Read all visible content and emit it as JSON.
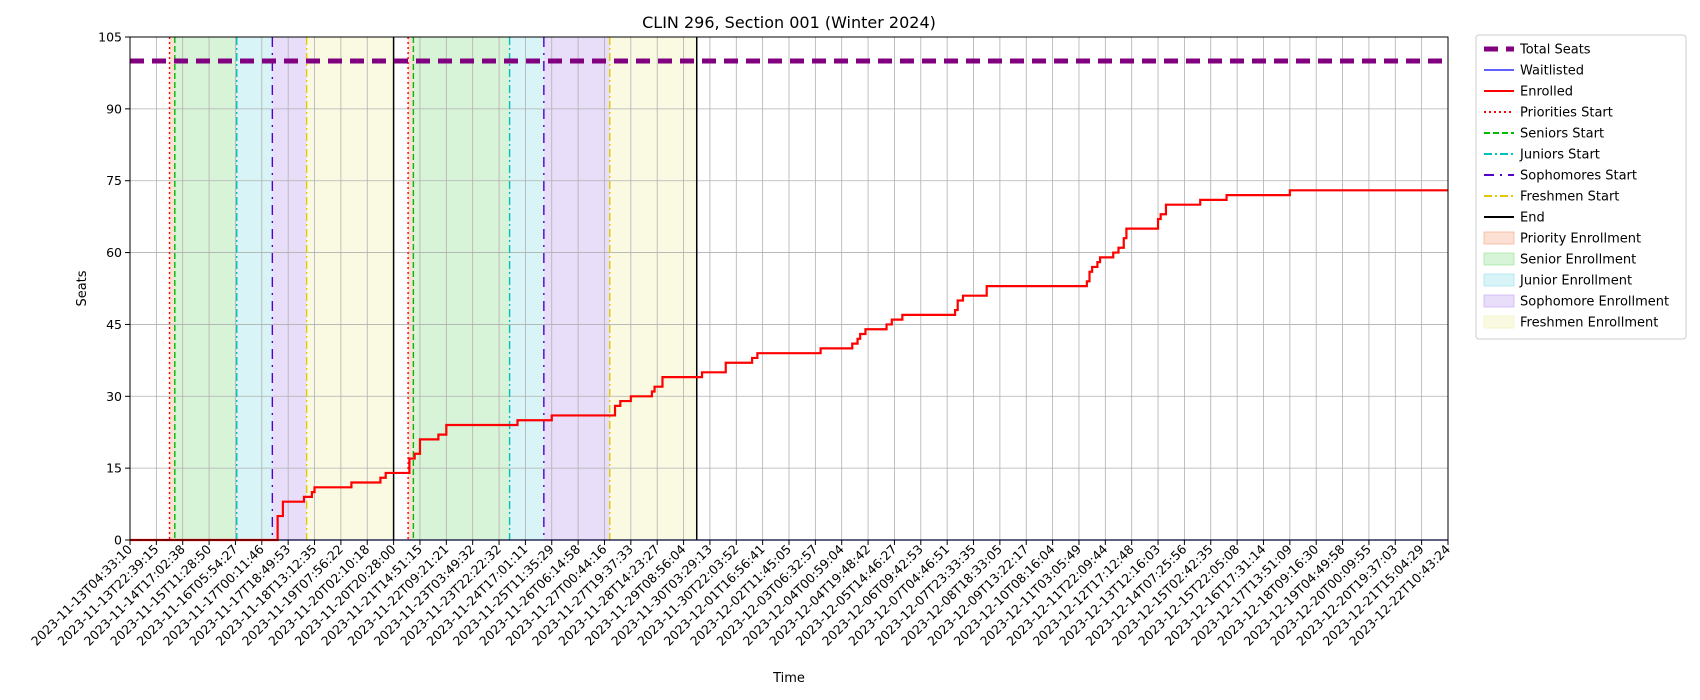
{
  "chart_data": {
    "type": "line",
    "title": "CLIN 296, Section 001 (Winter 2024)",
    "xlabel": "Time",
    "ylabel": "Seats",
    "ylim": [
      0,
      105
    ],
    "yticks": [
      0,
      15,
      30,
      45,
      60,
      75,
      90,
      105
    ],
    "grid": true,
    "legend_position": "outside-top-right",
    "x_tick_labels": [
      "2023-11-13T04:33:10",
      "2023-11-13T22:39:15",
      "2023-11-14T17:02:38",
      "2023-11-15T11:28:50",
      "2023-11-16T05:54:27",
      "2023-11-17T00:11:46",
      "2023-11-17T18:49:53",
      "2023-11-18T13:12:35",
      "2023-11-19T07:56:22",
      "2023-11-20T02:10:18",
      "2023-11-20T20:28:00",
      "2023-11-21T14:51:15",
      "2023-11-22T09:21:21",
      "2023-11-23T03:49:32",
      "2023-11-23T22:22:32",
      "2023-11-24T17:01:11",
      "2023-11-25T11:35:29",
      "2023-11-26T06:14:58",
      "2023-11-27T00:44:16",
      "2023-11-27T19:37:33",
      "2023-11-28T14:23:27",
      "2023-11-29T08:56:04",
      "2023-11-30T03:29:13",
      "2023-11-30T22:03:52",
      "2023-12-01T16:56:41",
      "2023-12-02T11:45:05",
      "2023-12-03T06:32:57",
      "2023-12-04T00:59:04",
      "2023-12-04T19:48:42",
      "2023-12-05T14:46:27",
      "2023-12-06T09:42:53",
      "2023-12-07T04:46:51",
      "2023-12-07T23:33:35",
      "2023-12-08T18:33:05",
      "2023-12-09T13:22:17",
      "2023-12-10T08:16:04",
      "2023-12-11T03:05:49",
      "2023-12-11T22:09:44",
      "2023-12-12T17:12:48",
      "2023-12-13T12:16:03",
      "2023-12-14T07:25:56",
      "2023-12-15T02:42:35",
      "2023-12-15T22:05:08",
      "2023-12-16T17:31:14",
      "2023-12-17T13:51:09",
      "2023-12-18T09:16:30",
      "2023-12-19T04:49:58",
      "2023-12-20T00:09:55",
      "2023-12-20T19:37:03",
      "2023-12-21T15:04:29",
      "2023-12-22T10:43:24"
    ],
    "x_range": [
      0,
      50
    ],
    "series": [
      {
        "name": "Total Seats",
        "color": "#800080",
        "style": "dashed-thick",
        "points": [
          [
            0,
            100
          ],
          [
            50,
            100
          ]
        ]
      },
      {
        "name": "Waitlisted",
        "color": "#0000ff",
        "style": "solid-thin",
        "points": [
          [
            0,
            0
          ],
          [
            50,
            0
          ]
        ]
      },
      {
        "name": "Enrolled",
        "color": "#ff0000",
        "style": "solid",
        "points": [
          [
            0,
            0
          ],
          [
            5.6,
            0
          ],
          [
            5.6,
            5
          ],
          [
            5.8,
            5
          ],
          [
            5.8,
            8
          ],
          [
            6.6,
            8
          ],
          [
            6.6,
            9
          ],
          [
            6.9,
            9
          ],
          [
            6.9,
            10
          ],
          [
            7.0,
            10
          ],
          [
            7.0,
            11
          ],
          [
            8.4,
            11
          ],
          [
            8.4,
            12
          ],
          [
            9.5,
            12
          ],
          [
            9.5,
            13
          ],
          [
            9.7,
            13
          ],
          [
            9.7,
            14
          ],
          [
            10.6,
            14
          ],
          [
            10.6,
            17
          ],
          [
            10.8,
            17
          ],
          [
            10.8,
            18
          ],
          [
            11.0,
            18
          ],
          [
            11.0,
            21
          ],
          [
            11.7,
            21
          ],
          [
            11.7,
            22
          ],
          [
            12.0,
            22
          ],
          [
            12.0,
            24
          ],
          [
            14.7,
            24
          ],
          [
            14.7,
            25
          ],
          [
            16.0,
            25
          ],
          [
            16.0,
            26
          ],
          [
            18.4,
            26
          ],
          [
            18.4,
            28
          ],
          [
            18.6,
            28
          ],
          [
            18.6,
            29
          ],
          [
            19.0,
            29
          ],
          [
            19.0,
            30
          ],
          [
            19.8,
            30
          ],
          [
            19.8,
            31
          ],
          [
            19.9,
            31
          ],
          [
            19.9,
            32
          ],
          [
            20.2,
            32
          ],
          [
            20.2,
            34
          ],
          [
            21.7,
            34
          ],
          [
            21.7,
            35
          ],
          [
            22.6,
            35
          ],
          [
            22.6,
            37
          ],
          [
            23.6,
            37
          ],
          [
            23.6,
            38
          ],
          [
            23.8,
            38
          ],
          [
            23.8,
            39
          ],
          [
            26.2,
            39
          ],
          [
            26.2,
            40
          ],
          [
            27.4,
            40
          ],
          [
            27.4,
            41
          ],
          [
            27.6,
            41
          ],
          [
            27.6,
            42
          ],
          [
            27.7,
            42
          ],
          [
            27.7,
            43
          ],
          [
            27.9,
            43
          ],
          [
            27.9,
            44
          ],
          [
            28.7,
            44
          ],
          [
            28.7,
            45
          ],
          [
            28.9,
            45
          ],
          [
            28.9,
            46
          ],
          [
            29.3,
            46
          ],
          [
            29.3,
            47
          ],
          [
            31.3,
            47
          ],
          [
            31.3,
            48
          ],
          [
            31.4,
            48
          ],
          [
            31.4,
            50
          ],
          [
            31.6,
            50
          ],
          [
            31.6,
            51
          ],
          [
            32.5,
            51
          ],
          [
            32.5,
            53
          ],
          [
            36.3,
            53
          ],
          [
            36.3,
            54
          ],
          [
            36.4,
            54
          ],
          [
            36.4,
            56
          ],
          [
            36.5,
            56
          ],
          [
            36.5,
            57
          ],
          [
            36.7,
            57
          ],
          [
            36.7,
            58
          ],
          [
            36.8,
            58
          ],
          [
            36.8,
            59
          ],
          [
            37.3,
            59
          ],
          [
            37.3,
            60
          ],
          [
            37.5,
            60
          ],
          [
            37.5,
            61
          ],
          [
            37.7,
            61
          ],
          [
            37.7,
            63
          ],
          [
            37.8,
            63
          ],
          [
            37.8,
            65
          ],
          [
            39.0,
            65
          ],
          [
            39.0,
            67
          ],
          [
            39.1,
            67
          ],
          [
            39.1,
            68
          ],
          [
            39.3,
            68
          ],
          [
            39.3,
            70
          ],
          [
            40.6,
            70
          ],
          [
            40.6,
            71
          ],
          [
            41.6,
            71
          ],
          [
            41.6,
            72
          ],
          [
            44.0,
            72
          ],
          [
            44.0,
            73
          ],
          [
            50,
            73
          ]
        ]
      }
    ],
    "vertical_markers": [
      {
        "name": "Priorities Start",
        "color": "#ff0000",
        "style": "dotted",
        "x": [
          1.5,
          10.55
        ]
      },
      {
        "name": "Seniors Start",
        "color": "#00bb00",
        "style": "dashed",
        "x": [
          1.7,
          10.75
        ]
      },
      {
        "name": "Juniors Start",
        "color": "#00bfbf",
        "style": "dashdot",
        "x": [
          4.05,
          14.4
        ]
      },
      {
        "name": "Sophomores Start",
        "color": "#5500cc",
        "style": "dashdotsparse",
        "x": [
          5.4,
          15.7
        ]
      },
      {
        "name": "Freshmen Start",
        "color": "#e6c800",
        "style": "dashdot",
        "x": [
          6.7,
          18.2
        ]
      },
      {
        "name": "End",
        "color": "#000000",
        "style": "solid",
        "x": [
          10.0,
          21.5
        ]
      }
    ],
    "shaded_regions": [
      {
        "name": "Priority Enrollment",
        "color": "#f4a582",
        "ranges": [
          [
            1.5,
            1.7
          ],
          [
            10.55,
            10.75
          ]
        ]
      },
      {
        "name": "Senior Enrollment",
        "color": "#90e090",
        "ranges": [
          [
            1.7,
            4.05
          ],
          [
            10.75,
            14.4
          ]
        ]
      },
      {
        "name": "Junior Enrollment",
        "color": "#90e0e8",
        "ranges": [
          [
            4.05,
            5.4
          ],
          [
            14.4,
            15.7
          ]
        ]
      },
      {
        "name": "Sophomore Enrollment",
        "color": "#c0a0f0",
        "ranges": [
          [
            5.4,
            6.7
          ],
          [
            15.7,
            18.2
          ]
        ]
      },
      {
        "name": "Freshmen Enrollment",
        "color": "#f0f0b0",
        "ranges": [
          [
            6.7,
            10.0
          ],
          [
            18.2,
            21.5
          ]
        ]
      }
    ],
    "legend": [
      "Total Seats",
      "Waitlisted",
      "Enrolled",
      "Priorities Start",
      "Seniors Start",
      "Juniors Start",
      "Sophomores Start",
      "Freshmen Start",
      "End",
      "Priority Enrollment",
      "Senior Enrollment",
      "Junior Enrollment",
      "Sophomore Enrollment",
      "Freshmen Enrollment"
    ]
  }
}
